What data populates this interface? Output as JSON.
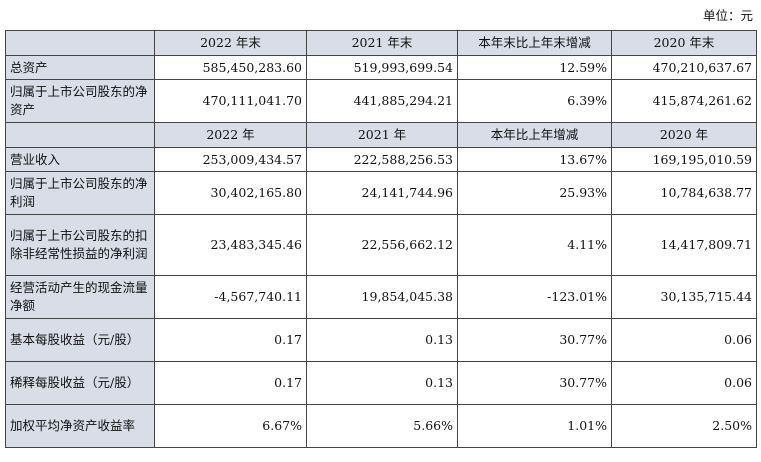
{
  "unit_label": "单位：元",
  "header1": [
    "",
    "2022 年末",
    "2021 年末",
    "本年末比上年末增减",
    "2020 年末"
  ],
  "header2": [
    "",
    "2022 年",
    "2021 年",
    "本年比上年增减",
    "2020 年"
  ],
  "rows": [
    {
      "label": "总资产",
      "values": [
        "585,450,283.60",
        "519,993,699.54",
        "12.59%",
        "470,210,637.67"
      ]
    },
    {
      "label": "归属于上市公司股东的净资产",
      "values": [
        "470,111,041.70",
        "441,885,294.21",
        "6.39%",
        "415,874,261.62"
      ]
    },
    {
      "label": "营业收入",
      "values": [
        "253,009,434.57",
        "222,588,256.53",
        "13.67%",
        "169,195,010.59"
      ]
    },
    {
      "label": "归属于上市公司股东的净利润",
      "values": [
        "30,402,165.80",
        "24,141,744.96",
        "25.93%",
        "10,784,638.77"
      ]
    },
    {
      "label": "归属于上市公司股东的扣除非经常性损益的净利润",
      "values": [
        "23,483,345.46",
        "22,556,662.12",
        "4.11%",
        "14,417,809.71"
      ]
    },
    {
      "label": "经营活动产生的现金流量净额",
      "values": [
        "-4,567,740.11",
        "19,854,045.38",
        "-123.01%",
        "30,135,715.44"
      ]
    },
    {
      "label": "基本每股收益（元/股）",
      "values": [
        "0.17",
        "0.13",
        "30.77%",
        "0.06"
      ]
    },
    {
      "label": "稀释每股收益（元/股）",
      "values": [
        "0.17",
        "0.13",
        "30.77%",
        "0.06"
      ]
    },
    {
      "label": "加权平均净资产收益率",
      "values": [
        "6.67%",
        "5.66%",
        "1.01%",
        "2.50%"
      ]
    }
  ]
}
